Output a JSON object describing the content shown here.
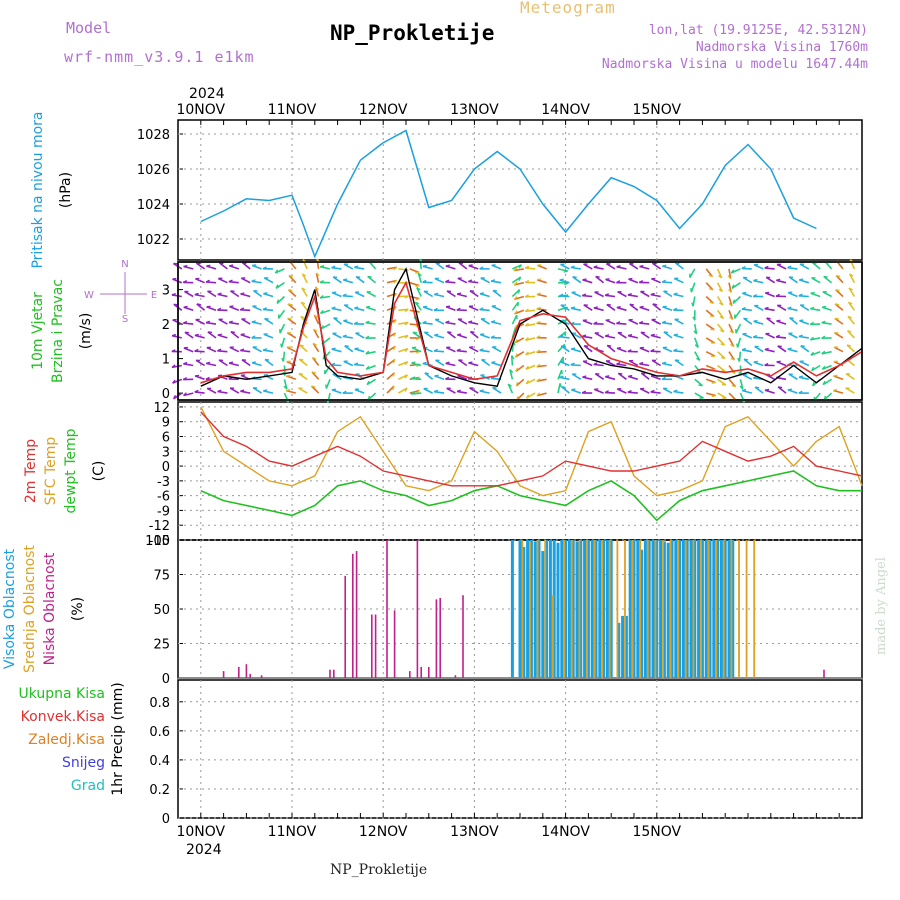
{
  "header": {
    "model_label": "Model",
    "model_name": "wrf-nmm_v3.9.1 e1km",
    "station": "NP_Prokletije",
    "meteogram_label": "Meteogram",
    "lonlat": "lon,lat (19.9125E, 42.5312N)",
    "elevation": "Nadmorska Visina 1760m",
    "model_elevation": "Nadmorska Visina u modelu 1647.44m"
  },
  "footer": {
    "station": "NP_Prokletije"
  },
  "credit": "made by Angel",
  "colors": {
    "pressure": "#1aa0e0",
    "wind_speed": "#000000",
    "wind_gust": "#e03030",
    "temp2m": "#e03030",
    "sfc_temp": "#e0a020",
    "dewpt": "#20c020",
    "high_cloud": "#1aa0e0",
    "mid_cloud": "#e0a020",
    "low_cloud": "#c0208a"
  },
  "axis": {
    "year": "2024",
    "day_labels": [
      "10NOV",
      "11NOV",
      "12NOV",
      "13NOV",
      "14NOV",
      "15NOV"
    ]
  },
  "panels": {
    "pressure": {
      "labels": [
        "Pritisak na nivou mora"
      ],
      "label_colors": [
        "#1aa0e0"
      ],
      "unit": "(hPa)",
      "ticks": [
        "1022",
        "1024",
        "1026",
        "1028"
      ]
    },
    "wind": {
      "labels": [
        "10m Vjetar",
        "Brzina i Pravac"
      ],
      "label_colors": [
        "#20c020",
        "#20c020"
      ],
      "unit": "(m/s)",
      "ticks": [
        "0",
        "1",
        "2",
        "3"
      ],
      "compass": [
        "N",
        "E",
        "W",
        "S"
      ]
    },
    "temp": {
      "labels": [
        "2m Temp",
        "SFC Temp",
        "dewpt Temp"
      ],
      "label_colors": [
        "#e03030",
        "#e0a020",
        "#20c020"
      ],
      "unit": "(C)",
      "ticks": [
        "-15",
        "-12",
        "-9",
        "-6",
        "-3",
        "0",
        "3",
        "6",
        "9",
        "12"
      ]
    },
    "cloud": {
      "labels": [
        "Visoka Oblacnost",
        "Srednja Oblacnost",
        "Niska Oblacnost"
      ],
      "label_colors": [
        "#1aa0e0",
        "#e0a020",
        "#c0208a"
      ],
      "unit": "(%)",
      "ticks": [
        "0",
        "25",
        "50",
        "75",
        "100"
      ]
    },
    "precip": {
      "legend": [
        "Ukupna Kisa",
        "Konvek.Kisa",
        "Zaledj.Kisa",
        "Snijeg",
        "Grad"
      ],
      "legend_colors": [
        "#20c020",
        "#e03030",
        "#e08020",
        "#4040e0",
        "#20c0c0"
      ],
      "unit": "1hr Precip (mm)",
      "ticks": [
        "0",
        "0.2",
        "0.4",
        "0.6",
        "0.8"
      ]
    }
  },
  "chart_data": [
    {
      "type": "line",
      "name": "pressure",
      "x_hours": [
        0,
        6,
        12,
        18,
        24,
        27,
        30,
        36,
        42,
        48,
        54,
        60,
        66,
        72,
        78,
        84,
        90,
        96,
        102,
        108,
        114,
        120,
        126,
        132,
        138,
        144,
        150,
        156,
        162
      ],
      "values": [
        1023.0,
        1023.6,
        1024.3,
        1024.2,
        1024.5,
        1022.8,
        1021.0,
        1024.0,
        1026.5,
        1027.5,
        1028.2,
        1023.8,
        1024.2,
        1026.0,
        1027.0,
        1026.0,
        1024.0,
        1022.4,
        1024.0,
        1025.5,
        1025.0,
        1024.2,
        1022.6,
        1024.0,
        1026.2,
        1027.4,
        1026.0,
        1023.2,
        1022.6
      ],
      "ylim": [
        1020.8,
        1028.8
      ]
    },
    {
      "type": "line",
      "name": "wind",
      "x_hours": [
        0,
        6,
        12,
        18,
        24,
        27,
        30,
        33,
        36,
        42,
        48,
        51,
        54,
        60,
        66,
        72,
        78,
        84,
        90,
        96,
        102,
        108,
        114,
        120,
        126,
        132,
        138,
        144,
        150,
        156,
        162,
        168,
        174
      ],
      "speed": [
        0.2,
        0.5,
        0.4,
        0.5,
        0.6,
        2.0,
        3.0,
        0.8,
        0.5,
        0.4,
        0.6,
        3.0,
        3.6,
        0.8,
        0.5,
        0.3,
        0.2,
        2.0,
        2.4,
        2.0,
        1.0,
        0.8,
        0.7,
        0.5,
        0.5,
        0.6,
        0.4,
        0.6,
        0.3,
        0.8,
        0.3,
        0.8,
        1.3
      ],
      "gust": [
        0.3,
        0.5,
        0.6,
        0.6,
        0.7,
        1.9,
        2.8,
        1.0,
        0.6,
        0.5,
        0.6,
        2.6,
        3.2,
        0.8,
        0.6,
        0.4,
        0.5,
        2.1,
        2.3,
        2.2,
        1.4,
        1.0,
        0.8,
        0.6,
        0.5,
        0.7,
        0.6,
        0.7,
        0.5,
        0.9,
        0.5,
        0.8,
        1.2
      ],
      "ylim": [
        -0.2,
        3.8
      ]
    },
    {
      "type": "line",
      "name": "temperature",
      "x_hours": [
        0,
        6,
        12,
        18,
        24,
        30,
        36,
        42,
        48,
        54,
        60,
        66,
        72,
        78,
        84,
        90,
        96,
        102,
        108,
        114,
        120,
        126,
        132,
        138,
        144,
        150,
        156,
        162,
        168,
        174
      ],
      "temp2m": [
        11,
        6,
        4,
        1,
        0,
        2,
        4,
        2,
        -1,
        -2,
        -3,
        -4,
        -4,
        -4,
        -3,
        -2,
        1,
        0,
        -1,
        -1,
        0,
        1,
        5,
        3,
        1,
        2,
        4,
        0,
        -1,
        -2
      ],
      "sfc": [
        12,
        3,
        0,
        -3,
        -4,
        -2,
        7,
        10,
        3,
        -4,
        -5,
        -3,
        7,
        3,
        -4,
        -6,
        -5,
        7,
        9,
        -2,
        -6,
        -5,
        -3,
        8,
        10,
        5,
        0,
        5,
        8,
        -4
      ],
      "dewpt": [
        -5,
        -7,
        -8,
        -9,
        -10,
        -8,
        -4,
        -3,
        -5,
        -6,
        -8,
        -7,
        -5,
        -4,
        -6,
        -7,
        -8,
        -5,
        -3,
        -6,
        -11,
        -7,
        -5,
        -4,
        -3,
        -2,
        -1,
        -4,
        -5,
        -5
      ],
      "ylim": [
        -15,
        13
      ]
    },
    {
      "type": "bar",
      "name": "clouds",
      "ylim": [
        0,
        100
      ],
      "low_x": [
        6,
        10,
        12,
        13,
        16,
        34,
        35,
        38,
        40,
        41,
        45,
        46,
        49,
        51,
        55,
        57,
        58,
        60,
        62,
        63,
        67,
        69,
        164
      ],
      "low_v": [
        5,
        8,
        10,
        3,
        2,
        6,
        6,
        74,
        90,
        92,
        46,
        46,
        100,
        49,
        5,
        100,
        8,
        8,
        57,
        58,
        2,
        60,
        6
      ],
      "high_x": [
        82,
        84,
        85,
        86,
        87,
        88,
        89,
        90,
        91,
        92,
        93,
        94,
        95,
        96,
        97,
        98,
        99,
        100,
        101,
        102,
        103,
        104,
        105,
        106,
        107,
        108,
        110,
        111,
        112,
        113,
        114,
        115,
        116,
        117,
        118,
        119,
        120,
        121,
        122,
        123,
        124,
        125,
        126,
        127,
        128,
        129,
        130,
        131,
        132,
        133,
        134,
        135,
        136,
        137,
        138,
        139,
        140
      ],
      "high_v": [
        100,
        100,
        95,
        100,
        100,
        99,
        100,
        92,
        100,
        100,
        100,
        98,
        100,
        100,
        100,
        100,
        99,
        100,
        100,
        100,
        100,
        100,
        100,
        100,
        100,
        100,
        40,
        45,
        45,
        100,
        100,
        100,
        93,
        100,
        100,
        100,
        100,
        100,
        99,
        98,
        100,
        100,
        100,
        100,
        100,
        100,
        100,
        100,
        100,
        100,
        100,
        100,
        100,
        100,
        100,
        100,
        100
      ],
      "mid_x": [
        84,
        86,
        88,
        90,
        92,
        95,
        97,
        99,
        101,
        103,
        105,
        107,
        109,
        111,
        113,
        115,
        117,
        119,
        121,
        123,
        125,
        127,
        129,
        131,
        133,
        135,
        137,
        139,
        141,
        143,
        145
      ],
      "mid_v": [
        100,
        99,
        100,
        100,
        60,
        100,
        100,
        100,
        100,
        100,
        100,
        100,
        100,
        100,
        100,
        100,
        100,
        100,
        100,
        100,
        100,
        100,
        100,
        100,
        100,
        100,
        100,
        100,
        100,
        100,
        100
      ]
    },
    {
      "type": "bar",
      "name": "precip",
      "values": [],
      "ylim": [
        0,
        0.95
      ]
    }
  ]
}
